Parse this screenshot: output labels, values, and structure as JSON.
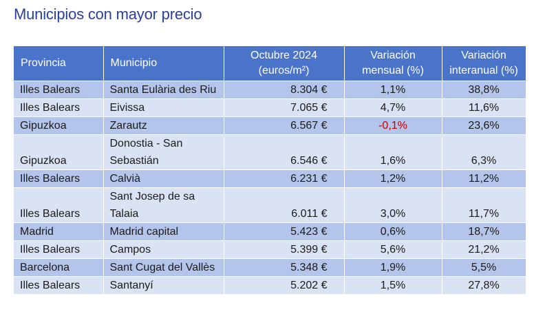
{
  "title": "Municipios con mayor precio",
  "headers": {
    "provincia": "Provincia",
    "municipio": "Municipio",
    "precio_line1": "Octubre 2024",
    "precio_line2": "(euros/m²)",
    "mensual_line1": "Variación",
    "mensual_line2": "mensual (%)",
    "interanual_line1": "Variación",
    "interanual_line2": "interanual (%)"
  },
  "rows": [
    {
      "provincia": "Illes Balears",
      "municipio": "Santa Eulària des Riu",
      "precio": "8.304 €",
      "mensual": "1,1%",
      "interanual": "38,8%"
    },
    {
      "provincia": "Illes Balears",
      "municipio": "Eivissa",
      "precio": "7.065 €",
      "mensual": "4,7%",
      "interanual": "11,6%"
    },
    {
      "provincia": "Gipuzkoa",
      "municipio": "Zarautz",
      "precio": "6.567 €",
      "mensual": "-0,1%",
      "interanual": "23,6%"
    },
    {
      "provincia": "Gipuzkoa",
      "municipio": "Donostia - San Sebastián",
      "precio": "6.546 €",
      "mensual": "1,6%",
      "interanual": "6,3%"
    },
    {
      "provincia": "Illes Balears",
      "municipio": "Calvià",
      "precio": "6.231 €",
      "mensual": "1,2%",
      "interanual": "11,2%"
    },
    {
      "provincia": "Illes Balears",
      "municipio": "Sant Josep de sa Talaia",
      "precio": "6.011 €",
      "mensual": "3,0%",
      "interanual": "11,7%"
    },
    {
      "provincia": "Madrid",
      "municipio": "Madrid capital",
      "precio": "5.423 €",
      "mensual": "0,6%",
      "interanual": "18,7%"
    },
    {
      "provincia": "Illes Balears",
      "municipio": "Campos",
      "precio": "5.399 €",
      "mensual": "5,6%",
      "interanual": "21,2%"
    },
    {
      "provincia": "Barcelona",
      "municipio": "Sant Cugat del Vallès",
      "precio": "5.348 €",
      "mensual": "1,9%",
      "interanual": "5,5%"
    },
    {
      "provincia": "Illes Balears",
      "municipio": "Santanyí",
      "precio": "5.202 €",
      "mensual": "1,5%",
      "interanual": "27,8%"
    }
  ],
  "colors": {
    "header_bg": "#4a74c9",
    "row_dark": "#b3c5ea",
    "row_light": "#dae3f4",
    "title": "#2a3f9a",
    "negative": "#c00000"
  }
}
